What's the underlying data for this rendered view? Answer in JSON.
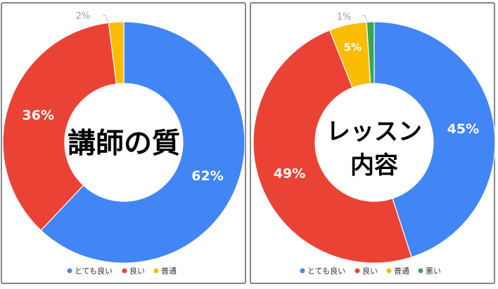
{
  "chart_data": [
    {
      "type": "pie",
      "style": "donut",
      "title": "講師の質",
      "legend": {
        "position": "bottom"
      },
      "slices": [
        {
          "label": "とても良い",
          "value": 62,
          "value_label": "62%",
          "color": "#4285F4"
        },
        {
          "label": "良い",
          "value": 36,
          "value_label": "36%",
          "color": "#EA4335"
        },
        {
          "label": "普通",
          "value": 2,
          "value_label": "2%",
          "color": "#FBBC04"
        }
      ]
    },
    {
      "type": "pie",
      "style": "donut",
      "title": "レッスン内容",
      "title_lines": [
        "レッスン",
        "内容"
      ],
      "legend": {
        "position": "bottom"
      },
      "slices": [
        {
          "label": "とても良い",
          "value": 45,
          "value_label": "45%",
          "color": "#4285F4"
        },
        {
          "label": "良い",
          "value": 49,
          "value_label": "49%",
          "color": "#EA4335"
        },
        {
          "label": "普通",
          "value": 5,
          "value_label": "5%",
          "color": "#FBBC04"
        },
        {
          "label": "悪い",
          "value": 1,
          "value_label": "1%",
          "color": "#34A853"
        }
      ]
    }
  ]
}
